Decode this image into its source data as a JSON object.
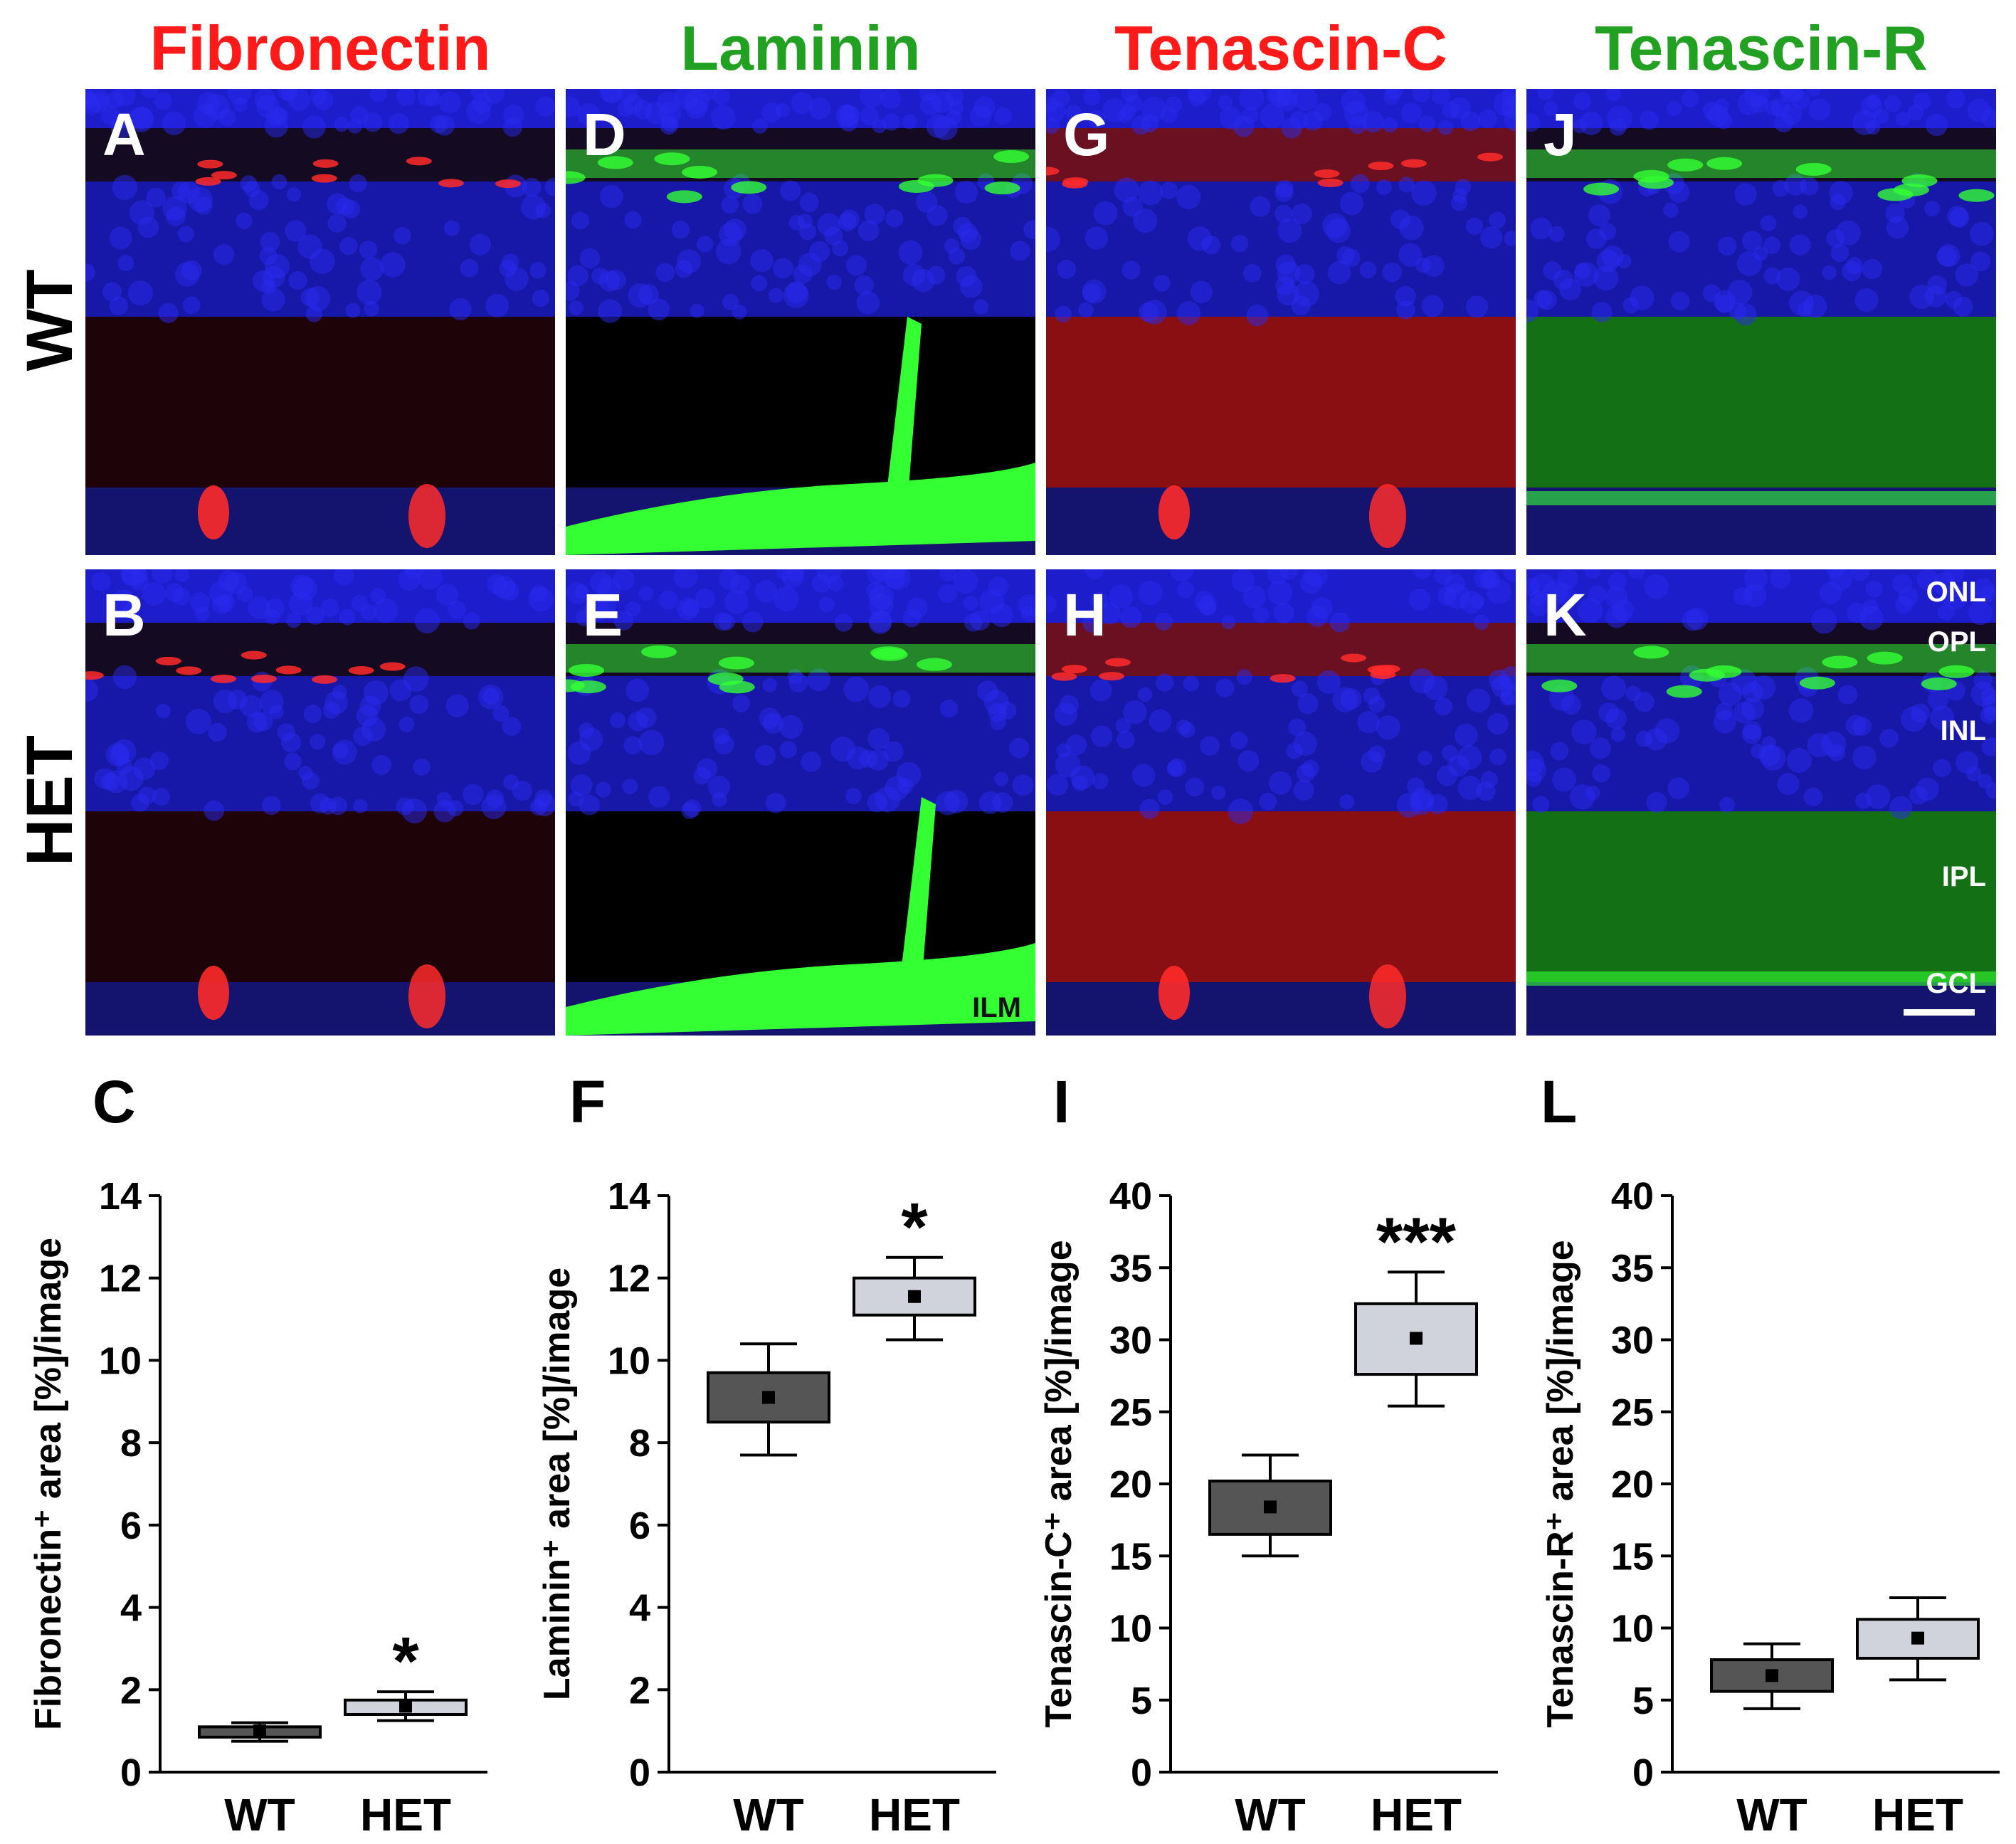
{
  "columns": [
    {
      "title": "Fibronectin",
      "color": "#ff1a1a"
    },
    {
      "title": "Laminin",
      "color": "#22a022"
    },
    {
      "title": "Tenascin-C",
      "color": "#ff1a1a"
    },
    {
      "title": "Tenascin-R",
      "color": "#22a022"
    }
  ],
  "rows": [
    "WT",
    "HET"
  ],
  "panels": {
    "top": [
      "A",
      "D",
      "G",
      "J"
    ],
    "bottom": [
      "B",
      "E",
      "H",
      "K"
    ],
    "chart": [
      "C",
      "F",
      "I",
      "L"
    ]
  },
  "retina_layers": [
    "ONL",
    "OPL",
    "INL",
    "IPL",
    "GCL"
  ],
  "ilm_label": "ILM",
  "chart_data": [
    {
      "type": "box",
      "ylabel": "Fibronectin⁺ area [%]/image",
      "categories": [
        "WT",
        "HET"
      ],
      "ylim": [
        0,
        14
      ],
      "yticks": [
        0,
        2,
        4,
        6,
        8,
        10,
        12,
        14
      ],
      "boxes": [
        {
          "name": "WT",
          "whisker_low": 0.75,
          "q1": 0.85,
          "q3": 1.1,
          "whisker_high": 1.2,
          "mean": 1.0,
          "color": "#555555"
        },
        {
          "name": "HET",
          "whisker_low": 1.25,
          "q1": 1.4,
          "q3": 1.75,
          "whisker_high": 1.95,
          "mean": 1.6,
          "color": "#d0d3dc"
        }
      ],
      "significance": "*"
    },
    {
      "type": "box",
      "ylabel": "Laminin⁺ area [%]/image",
      "categories": [
        "WT",
        "HET"
      ],
      "ylim": [
        0,
        14
      ],
      "yticks": [
        0,
        2,
        4,
        6,
        8,
        10,
        12,
        14
      ],
      "boxes": [
        {
          "name": "WT",
          "whisker_low": 7.7,
          "q1": 8.5,
          "q3": 9.7,
          "whisker_high": 10.4,
          "mean": 9.1,
          "color": "#555555"
        },
        {
          "name": "HET",
          "whisker_low": 10.5,
          "q1": 11.1,
          "q3": 12.0,
          "whisker_high": 12.5,
          "mean": 11.55,
          "color": "#d0d3dc"
        }
      ],
      "significance": "*"
    },
    {
      "type": "box",
      "ylabel": "Tenascin-C⁺ area [%]/image",
      "categories": [
        "WT",
        "HET"
      ],
      "ylim": [
        0,
        40
      ],
      "yticks": [
        0,
        5,
        10,
        15,
        20,
        25,
        30,
        35,
        40
      ],
      "boxes": [
        {
          "name": "WT",
          "whisker_low": 15.0,
          "q1": 16.5,
          "q3": 20.2,
          "whisker_high": 22.0,
          "mean": 18.4,
          "color": "#555555"
        },
        {
          "name": "HET",
          "whisker_low": 25.4,
          "q1": 27.6,
          "q3": 32.5,
          "whisker_high": 34.7,
          "mean": 30.1,
          "color": "#d0d3dc"
        }
      ],
      "significance": "***"
    },
    {
      "type": "box",
      "ylabel": "Tenascin-R⁺ area [%]/image",
      "categories": [
        "WT",
        "HET"
      ],
      "ylim": [
        0,
        40
      ],
      "yticks": [
        0,
        5,
        10,
        15,
        20,
        25,
        30,
        35,
        40
      ],
      "boxes": [
        {
          "name": "WT",
          "whisker_low": 4.4,
          "q1": 5.6,
          "q3": 7.8,
          "whisker_high": 8.9,
          "mean": 6.7,
          "color": "#555555"
        },
        {
          "name": "HET",
          "whisker_low": 6.4,
          "q1": 7.9,
          "q3": 10.6,
          "whisker_high": 12.1,
          "mean": 9.3,
          "color": "#d0d3dc"
        }
      ],
      "significance": ""
    }
  ]
}
